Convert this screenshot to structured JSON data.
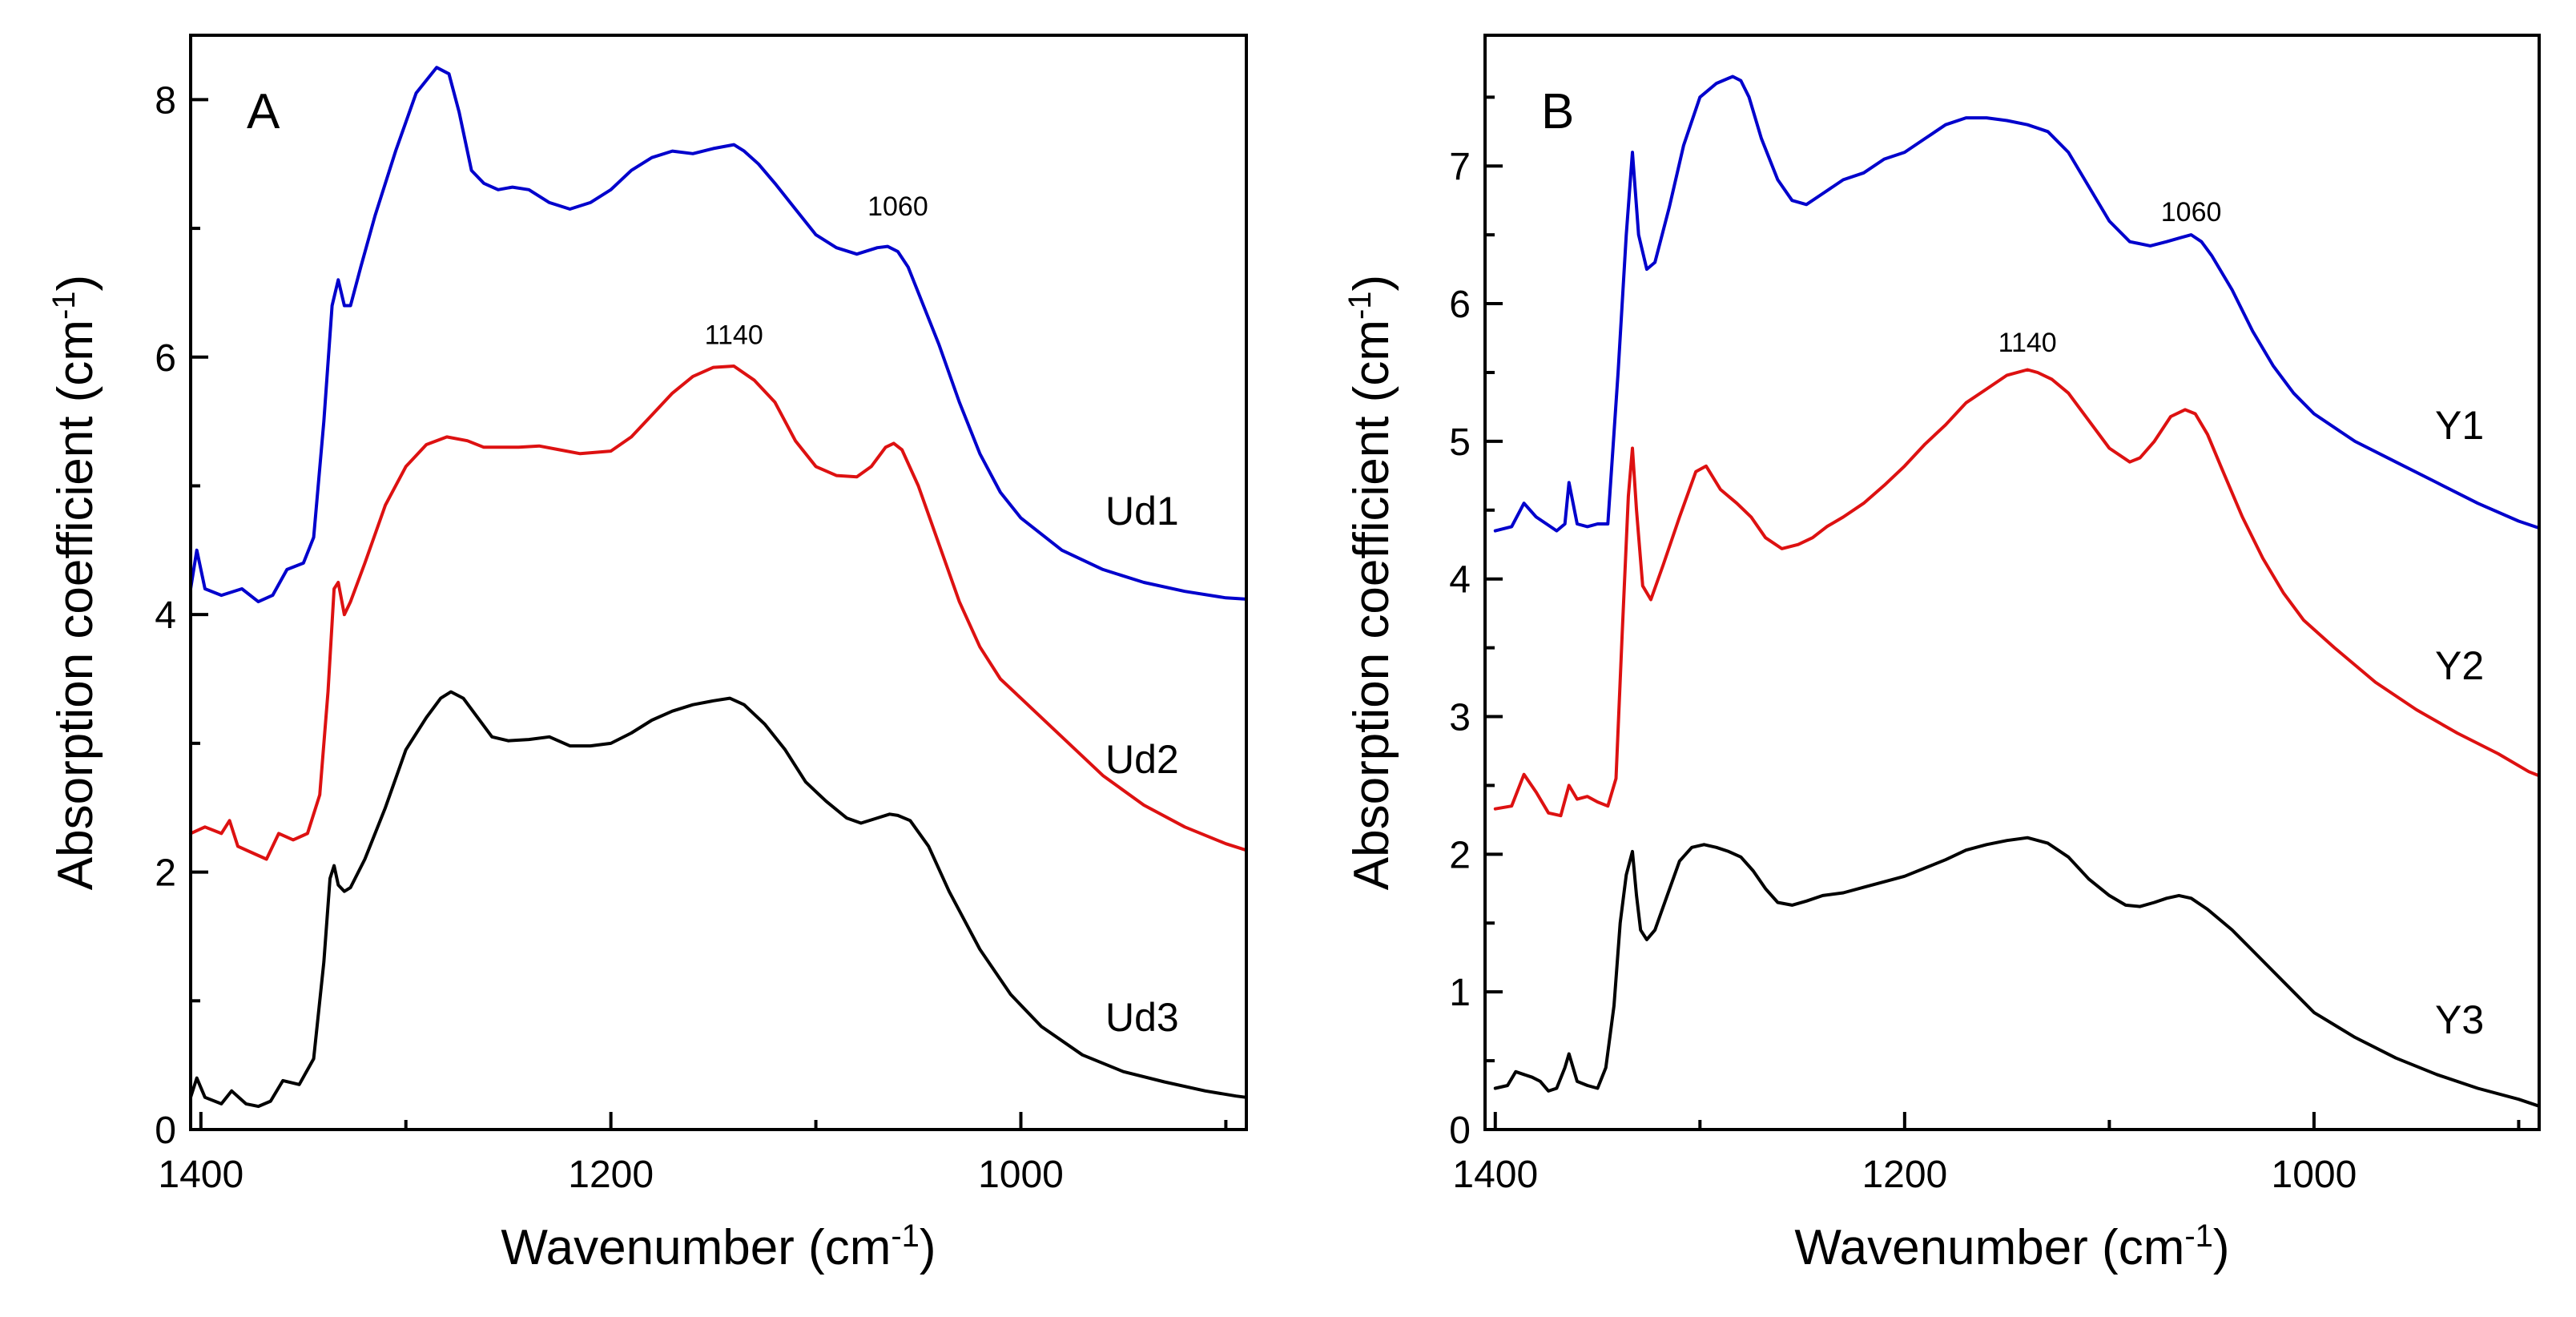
{
  "chart_data": [
    {
      "panel": "A",
      "type": "line",
      "xlabel": "Wavenumber (cm",
      "xlabel_sup": "-1",
      "xlabel_tail": ")",
      "ylabel": "Absorption coefficient (cm",
      "ylabel_sup": "-1",
      "ylabel_tail": ")",
      "xlim": [
        1405,
        890
      ],
      "ylim": [
        0,
        8.5
      ],
      "xticks_major": [
        1400,
        1200,
        1000
      ],
      "yticks_major": [
        0,
        2,
        4,
        6,
        8
      ],
      "xtick_labels": [
        "1400",
        "1200",
        "1000"
      ],
      "ytick_labels": [
        "0",
        "2",
        "4",
        "6",
        "8"
      ],
      "series": [
        {
          "name": "Ud1",
          "color": "#0000cc",
          "x": [
            1405,
            1402,
            1398,
            1390,
            1380,
            1372,
            1365,
            1358,
            1350,
            1345,
            1340,
            1336,
            1333,
            1330,
            1327,
            1322,
            1315,
            1305,
            1295,
            1285,
            1279,
            1274,
            1268,
            1262,
            1255,
            1248,
            1240,
            1230,
            1220,
            1210,
            1200,
            1190,
            1180,
            1170,
            1160,
            1150,
            1140,
            1135,
            1128,
            1120,
            1110,
            1100,
            1090,
            1080,
            1070,
            1065,
            1060,
            1055,
            1050,
            1040,
            1030,
            1020,
            1010,
            1000,
            980,
            960,
            940,
            920,
            900,
            890
          ],
          "y": [
            4.2,
            4.5,
            4.2,
            4.15,
            4.2,
            4.1,
            4.15,
            4.35,
            4.4,
            4.6,
            5.5,
            6.4,
            6.6,
            6.4,
            6.4,
            6.7,
            7.1,
            7.6,
            8.05,
            8.25,
            8.2,
            7.9,
            7.45,
            7.35,
            7.3,
            7.32,
            7.3,
            7.2,
            7.15,
            7.2,
            7.3,
            7.45,
            7.55,
            7.6,
            7.58,
            7.62,
            7.65,
            7.6,
            7.5,
            7.35,
            7.15,
            6.95,
            6.85,
            6.8,
            6.85,
            6.86,
            6.82,
            6.7,
            6.5,
            6.1,
            5.65,
            5.25,
            4.95,
            4.75,
            4.5,
            4.35,
            4.25,
            4.18,
            4.13,
            4.12
          ]
        },
        {
          "name": "Ud2",
          "color": "#dd1111",
          "x": [
            1405,
            1398,
            1390,
            1386,
            1382,
            1375,
            1368,
            1362,
            1355,
            1348,
            1342,
            1338,
            1335,
            1333,
            1330,
            1327,
            1320,
            1310,
            1300,
            1290,
            1280,
            1270,
            1262,
            1255,
            1245,
            1235,
            1225,
            1215,
            1200,
            1190,
            1180,
            1170,
            1160,
            1150,
            1140,
            1130,
            1120,
            1110,
            1100,
            1090,
            1080,
            1073,
            1066,
            1062,
            1058,
            1050,
            1040,
            1030,
            1020,
            1010,
            1000,
            980,
            960,
            940,
            920,
            900,
            890
          ],
          "y": [
            2.3,
            2.35,
            2.3,
            2.4,
            2.2,
            2.15,
            2.1,
            2.3,
            2.25,
            2.3,
            2.6,
            3.4,
            4.2,
            4.25,
            4.0,
            4.1,
            4.4,
            4.85,
            5.15,
            5.32,
            5.38,
            5.35,
            5.3,
            5.3,
            5.3,
            5.31,
            5.28,
            5.25,
            5.27,
            5.38,
            5.55,
            5.72,
            5.85,
            5.92,
            5.93,
            5.82,
            5.65,
            5.35,
            5.15,
            5.08,
            5.07,
            5.15,
            5.3,
            5.33,
            5.28,
            5.0,
            4.55,
            4.1,
            3.75,
            3.5,
            3.35,
            3.05,
            2.75,
            2.52,
            2.35,
            2.22,
            2.17
          ]
        },
        {
          "name": "Ud3",
          "color": "#000000",
          "x": [
            1405,
            1402,
            1398,
            1390,
            1385,
            1378,
            1372,
            1366,
            1360,
            1352,
            1345,
            1340,
            1337,
            1335,
            1333,
            1330,
            1327,
            1320,
            1310,
            1300,
            1290,
            1283,
            1278,
            1272,
            1265,
            1258,
            1250,
            1240,
            1230,
            1220,
            1210,
            1200,
            1190,
            1180,
            1170,
            1160,
            1150,
            1142,
            1135,
            1125,
            1115,
            1105,
            1095,
            1085,
            1078,
            1070,
            1064,
            1060,
            1054,
            1045,
            1035,
            1020,
            1005,
            990,
            970,
            950,
            930,
            910,
            895,
            890
          ],
          "y": [
            0.25,
            0.4,
            0.25,
            0.2,
            0.3,
            0.2,
            0.18,
            0.22,
            0.38,
            0.35,
            0.55,
            1.3,
            1.95,
            2.05,
            1.9,
            1.85,
            1.88,
            2.1,
            2.5,
            2.95,
            3.2,
            3.35,
            3.4,
            3.35,
            3.2,
            3.05,
            3.02,
            3.03,
            3.05,
            2.98,
            2.98,
            3.0,
            3.08,
            3.18,
            3.25,
            3.3,
            3.33,
            3.35,
            3.3,
            3.15,
            2.95,
            2.7,
            2.55,
            2.42,
            2.38,
            2.42,
            2.45,
            2.44,
            2.4,
            2.2,
            1.85,
            1.4,
            1.05,
            0.8,
            0.58,
            0.45,
            0.37,
            0.3,
            0.26,
            0.25
          ]
        }
      ],
      "series_labels": [
        {
          "text": "Ud1",
          "series": "Ud1"
        },
        {
          "text": "Ud2",
          "series": "Ud2"
        },
        {
          "text": "Ud3",
          "series": "Ud3"
        }
      ],
      "annotations": [
        {
          "text": "1060",
          "x": 1060,
          "y": 7.1
        },
        {
          "text": "1140",
          "x": 1140,
          "y": 6.1
        }
      ]
    },
    {
      "panel": "B",
      "type": "line",
      "xlabel": "Wavenumber (cm",
      "xlabel_sup": "-1",
      "xlabel_tail": ")",
      "ylabel": "Absorption coefficient (cm",
      "ylabel_sup": "-1",
      "ylabel_tail": ")",
      "xlim": [
        1405,
        890
      ],
      "ylim": [
        0,
        7.95
      ],
      "xticks_major": [
        1400,
        1200,
        1000
      ],
      "yticks_major": [
        0,
        1,
        2,
        3,
        4,
        5,
        6,
        7
      ],
      "xtick_labels": [
        "1400",
        "1200",
        "1000"
      ],
      "ytick_labels": [
        "0",
        "1",
        "2",
        "3",
        "4",
        "5",
        "6",
        "7"
      ],
      "series": [
        {
          "name": "Y1",
          "color": "#0000cc",
          "x": [
            1400,
            1392,
            1386,
            1380,
            1375,
            1370,
            1366,
            1364,
            1360,
            1355,
            1350,
            1345,
            1340,
            1336,
            1333,
            1330,
            1326,
            1322,
            1315,
            1308,
            1300,
            1292,
            1284,
            1280,
            1276,
            1270,
            1262,
            1255,
            1248,
            1240,
            1230,
            1220,
            1210,
            1200,
            1190,
            1180,
            1170,
            1160,
            1150,
            1140,
            1130,
            1120,
            1110,
            1100,
            1090,
            1080,
            1072,
            1065,
            1060,
            1055,
            1050,
            1040,
            1030,
            1020,
            1010,
            1000,
            980,
            960,
            940,
            920,
            900,
            890
          ],
          "y": [
            4.35,
            4.38,
            4.55,
            4.45,
            4.4,
            4.35,
            4.4,
            4.7,
            4.4,
            4.38,
            4.4,
            4.4,
            5.5,
            6.5,
            7.1,
            6.5,
            6.25,
            6.3,
            6.7,
            7.15,
            7.5,
            7.6,
            7.65,
            7.62,
            7.5,
            7.2,
            6.9,
            6.75,
            6.72,
            6.8,
            6.9,
            6.95,
            7.05,
            7.1,
            7.2,
            7.3,
            7.35,
            7.35,
            7.33,
            7.3,
            7.25,
            7.1,
            6.85,
            6.6,
            6.45,
            6.42,
            6.45,
            6.48,
            6.5,
            6.45,
            6.35,
            6.1,
            5.8,
            5.55,
            5.35,
            5.2,
            5.0,
            4.85,
            4.7,
            4.55,
            4.42,
            4.37
          ]
        },
        {
          "name": "Y2",
          "color": "#dd1111",
          "x": [
            1400,
            1392,
            1386,
            1380,
            1374,
            1368,
            1364,
            1360,
            1355,
            1350,
            1345,
            1341,
            1338,
            1335,
            1333,
            1331,
            1328,
            1324,
            1318,
            1310,
            1302,
            1297,
            1290,
            1282,
            1275,
            1268,
            1260,
            1252,
            1245,
            1238,
            1230,
            1220,
            1210,
            1200,
            1190,
            1180,
            1170,
            1160,
            1150,
            1140,
            1135,
            1128,
            1120,
            1110,
            1100,
            1090,
            1085,
            1078,
            1070,
            1063,
            1058,
            1052,
            1045,
            1035,
            1025,
            1015,
            1005,
            990,
            970,
            950,
            930,
            910,
            895,
            890
          ],
          "y": [
            2.33,
            2.35,
            2.58,
            2.45,
            2.3,
            2.28,
            2.5,
            2.4,
            2.42,
            2.38,
            2.35,
            2.55,
            3.6,
            4.6,
            4.95,
            4.5,
            3.95,
            3.85,
            4.1,
            4.45,
            4.78,
            4.82,
            4.65,
            4.55,
            4.45,
            4.3,
            4.22,
            4.25,
            4.3,
            4.38,
            4.45,
            4.55,
            4.68,
            4.82,
            4.98,
            5.12,
            5.28,
            5.38,
            5.48,
            5.52,
            5.5,
            5.45,
            5.35,
            5.15,
            4.95,
            4.85,
            4.88,
            5.0,
            5.18,
            5.23,
            5.2,
            5.05,
            4.8,
            4.45,
            4.15,
            3.9,
            3.7,
            3.5,
            3.25,
            3.05,
            2.88,
            2.73,
            2.6,
            2.57
          ]
        },
        {
          "name": "Y3",
          "color": "#000000",
          "x": [
            1400,
            1394,
            1390,
            1386,
            1382,
            1378,
            1374,
            1370,
            1366,
            1364,
            1360,
            1355,
            1350,
            1346,
            1342,
            1339,
            1336,
            1333,
            1331,
            1329,
            1326,
            1322,
            1316,
            1310,
            1304,
            1298,
            1292,
            1286,
            1280,
            1274,
            1268,
            1262,
            1255,
            1248,
            1240,
            1230,
            1220,
            1210,
            1200,
            1190,
            1180,
            1170,
            1160,
            1150,
            1140,
            1130,
            1120,
            1110,
            1100,
            1092,
            1085,
            1078,
            1072,
            1066,
            1060,
            1052,
            1040,
            1030,
            1020,
            1010,
            1000,
            980,
            960,
            940,
            920,
            900,
            890
          ],
          "y": [
            0.3,
            0.32,
            0.42,
            0.4,
            0.38,
            0.35,
            0.28,
            0.3,
            0.45,
            0.55,
            0.35,
            0.32,
            0.3,
            0.45,
            0.9,
            1.5,
            1.85,
            2.02,
            1.7,
            1.45,
            1.38,
            1.45,
            1.7,
            1.95,
            2.05,
            2.07,
            2.05,
            2.02,
            1.98,
            1.88,
            1.75,
            1.65,
            1.63,
            1.66,
            1.7,
            1.72,
            1.76,
            1.8,
            1.84,
            1.9,
            1.96,
            2.03,
            2.07,
            2.1,
            2.12,
            2.08,
            1.98,
            1.82,
            1.7,
            1.63,
            1.62,
            1.65,
            1.68,
            1.7,
            1.68,
            1.6,
            1.45,
            1.3,
            1.15,
            1.0,
            0.85,
            0.67,
            0.52,
            0.4,
            0.3,
            0.22,
            0.17
          ]
        }
      ],
      "series_labels": [
        {
          "text": "Y1",
          "series": "Y1"
        },
        {
          "text": "Y2",
          "series": "Y2"
        },
        {
          "text": "Y3",
          "series": "Y3"
        }
      ],
      "annotations": [
        {
          "text": "1060",
          "x": 1060,
          "y": 6.6
        },
        {
          "text": "1140",
          "x": 1140,
          "y": 5.65
        }
      ]
    }
  ]
}
